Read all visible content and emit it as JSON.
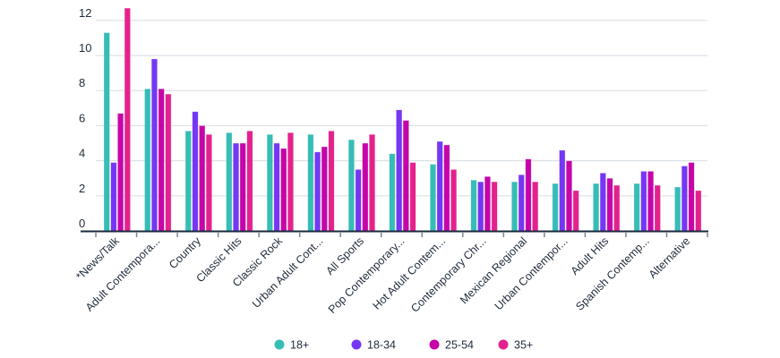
{
  "chart_data": {
    "type": "bar",
    "title": "",
    "xlabel": "",
    "ylabel": "",
    "ylim": [
      0,
      12.8
    ],
    "yticks": [
      0,
      2,
      4,
      6,
      8,
      10,
      12
    ],
    "grid": true,
    "legend_position": "bottom-center",
    "categories": [
      "*News/Talk",
      "Adult Contempora...",
      "Country",
      "Classic Hits",
      "Classic Rock",
      "Urban Adult Cont...",
      "All Sports",
      "Pop Contemporary...",
      "Hot Adult Contem...",
      "Contemporary Chr...",
      "Mexican Regional",
      "Urban Contempor...",
      "Adult Hits",
      "Spanish Contemp...",
      "Alternative"
    ],
    "series": [
      {
        "name": "18+",
        "color": "#35bdb6",
        "values": [
          11.3,
          8.1,
          5.7,
          5.6,
          5.5,
          5.5,
          5.2,
          4.4,
          3.8,
          2.9,
          2.8,
          2.7,
          2.7,
          2.7,
          2.5
        ]
      },
      {
        "name": "18-34",
        "color": "#7537f4",
        "values": [
          3.9,
          9.8,
          6.8,
          5.0,
          5.0,
          4.5,
          3.5,
          6.9,
          5.1,
          2.8,
          3.2,
          4.6,
          3.3,
          3.4,
          3.7
        ]
      },
      {
        "name": "25-54",
        "color": "#c505a9",
        "values": [
          6.7,
          8.1,
          6.0,
          5.0,
          4.7,
          4.8,
          5.0,
          6.3,
          4.9,
          3.1,
          4.1,
          4.0,
          3.0,
          3.4,
          3.9
        ]
      },
      {
        "name": "35+",
        "color": "#e3228d",
        "values": [
          12.7,
          7.8,
          5.5,
          5.7,
          5.6,
          5.7,
          5.5,
          3.9,
          3.5,
          2.8,
          2.8,
          2.3,
          2.6,
          2.6,
          2.3
        ]
      }
    ]
  }
}
